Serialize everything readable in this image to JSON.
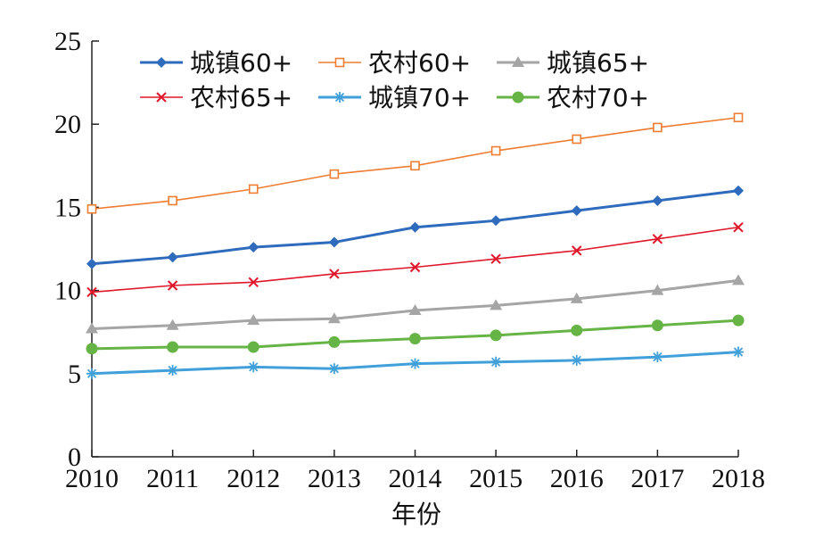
{
  "chart_data": {
    "type": "line",
    "title": "",
    "xlabel": "年份",
    "ylabel": "",
    "x": [
      2010,
      2011,
      2012,
      2013,
      2014,
      2015,
      2016,
      2017,
      2018
    ],
    "xlim": [
      2010,
      2018
    ],
    "ylim": [
      0,
      25
    ],
    "yticks": [
      0,
      5,
      10,
      15,
      20,
      25
    ],
    "grid": false,
    "legend_position": "top",
    "series": [
      {
        "name": "城镇60+",
        "color": "#2e6bbd",
        "marker": "diamond",
        "values": [
          11.6,
          12.0,
          12.6,
          12.9,
          13.8,
          14.2,
          14.8,
          15.4,
          16.0
        ]
      },
      {
        "name": "农村60+",
        "color": "#ee7d31",
        "marker": "open-square",
        "values": [
          14.9,
          15.4,
          16.1,
          17.0,
          17.5,
          18.4,
          19.1,
          19.8,
          20.4
        ]
      },
      {
        "name": "城镇65+",
        "color": "#a5a5a5",
        "marker": "triangle",
        "values": [
          7.7,
          7.9,
          8.2,
          8.3,
          8.8,
          9.1,
          9.5,
          10.0,
          10.6
        ]
      },
      {
        "name": "农村65+",
        "color": "#e0162b",
        "marker": "x",
        "values": [
          9.9,
          10.3,
          10.5,
          11.0,
          11.4,
          11.9,
          12.4,
          13.1,
          13.8
        ]
      },
      {
        "name": "城镇70+",
        "color": "#41a0da",
        "marker": "star",
        "values": [
          5.0,
          5.2,
          5.4,
          5.3,
          5.6,
          5.7,
          5.8,
          6.0,
          6.3
        ]
      },
      {
        "name": "农村70+",
        "color": "#65b445",
        "marker": "circle",
        "values": [
          6.5,
          6.6,
          6.6,
          6.9,
          7.1,
          7.3,
          7.6,
          7.9,
          8.2
        ]
      }
    ]
  }
}
